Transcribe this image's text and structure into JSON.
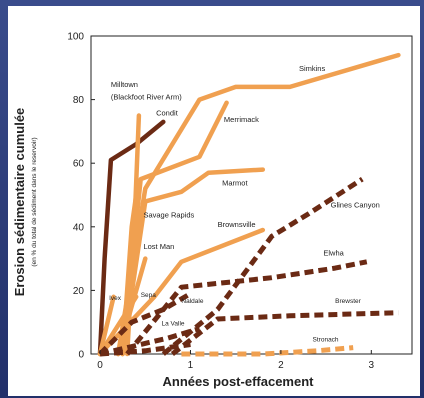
{
  "colors": {
    "background": "#2c3c78",
    "dam_removal_dark": "#6b2a14",
    "dam_removal_light": "#f0a050",
    "staged_dark": "#6b2a14",
    "staged_light": "#f0a050"
  },
  "chart_data": {
    "type": "line",
    "xlabel": "Années post-effacement",
    "ylabel": "Erosion sédimentaire cumulée",
    "ylabel_sub": "(en % du total de sédiment dans le reservoir)",
    "xlim": [
      -0.1,
      3.45
    ],
    "ylim": [
      0,
      100
    ],
    "x_ticks": [
      0,
      1,
      2,
      3
    ],
    "y_ticks": [
      0,
      20,
      40,
      60,
      80,
      100
    ],
    "grid": false,
    "series": [
      {
        "name": "Condit",
        "color": "#6b2a14",
        "dash": false,
        "x": [
          0,
          0.05,
          0.12,
          0.4,
          0.7
        ],
        "y": [
          0,
          30,
          61,
          66,
          73
        ]
      },
      {
        "name": "Milltown (Blackfoot River Arm)",
        "color": "#f0a050",
        "dash": false,
        "x": [
          0.3,
          0.38,
          0.43
        ],
        "y": [
          0,
          40,
          75
        ]
      },
      {
        "name": "Simkins",
        "color": "#f0a050",
        "dash": false,
        "x": [
          0.2,
          0.5,
          1.1,
          1.5,
          2.1,
          3.3
        ],
        "y": [
          0,
          52,
          80,
          84,
          84,
          94
        ]
      },
      {
        "name": "Merrimack",
        "color": "#f0a050",
        "dash": false,
        "x": [
          0.25,
          0.45,
          1.1,
          1.4
        ],
        "y": [
          0,
          55,
          62,
          79
        ]
      },
      {
        "name": "Marmot",
        "color": "#f0a050",
        "dash": false,
        "x": [
          0.25,
          0.5,
          0.9,
          1.2,
          1.8
        ],
        "y": [
          0,
          48,
          51,
          57,
          58
        ]
      },
      {
        "name": "Savage Rapids",
        "color": "#f0a050",
        "dash": false,
        "x": [
          0.25,
          0.35,
          0.4
        ],
        "y": [
          0,
          40,
          50
        ]
      },
      {
        "name": "Brownsville",
        "color": "#f0a050",
        "dash": false,
        "x": [
          0.0,
          0.6,
          0.9,
          1.8
        ],
        "y": [
          0,
          18,
          29,
          39
        ]
      },
      {
        "name": "Lost Man",
        "color": "#f0a050",
        "dash": false,
        "x": [
          0.2,
          0.5
        ],
        "y": [
          0,
          30
        ]
      },
      {
        "name": "Glines Canyon",
        "color": "#6b2a14",
        "dash": true,
        "x": [
          0.7,
          1.3,
          1.9,
          2.3,
          2.9
        ],
        "y": [
          0,
          14,
          37,
          44,
          55
        ]
      },
      {
        "name": "Elwha",
        "color": "#6b2a14",
        "dash": true,
        "x": [
          0.3,
          0.9,
          1.9,
          2.6,
          2.95
        ],
        "y": [
          0,
          21,
          24,
          27,
          29
        ]
      },
      {
        "name": "Brewster",
        "color": "#6b2a14",
        "dash": true,
        "x": [
          0.8,
          1.3,
          2.1,
          3.3
        ],
        "y": [
          0,
          11,
          12,
          13
        ]
      },
      {
        "name": "Stronach",
        "color": "#f0a050",
        "dash": true,
        "x": [
          0.9,
          1.8,
          2.4,
          2.8
        ],
        "y": [
          0,
          0,
          1,
          2
        ]
      },
      {
        "name": "Ivex",
        "color": "#f0a050",
        "dash": false,
        "x": [
          0.0,
          0.15
        ],
        "y": [
          0,
          18
        ]
      },
      {
        "name": "Sepa",
        "color": "#f0a050",
        "dash": false,
        "x": [
          0.0,
          0.4
        ],
        "y": [
          0,
          18
        ]
      },
      {
        "name": "Naldale",
        "color": "#6b2a14",
        "dash": true,
        "x": [
          0.0,
          0.35,
          0.7,
          1.0
        ],
        "y": [
          0,
          10,
          14,
          19
        ]
      },
      {
        "name": "La Valle",
        "color": "#6b2a14",
        "dash": true,
        "x": [
          0.0,
          0.3,
          0.75,
          1.1
        ],
        "y": [
          0,
          2,
          5,
          8
        ]
      },
      {
        "name": "",
        "color": "#6b2a14",
        "dash": true,
        "x": [
          0.0,
          0.5,
          1.0
        ],
        "y": [
          0,
          1,
          3
        ]
      }
    ],
    "annotations": [
      {
        "text": "Milltown",
        "x": 0.12,
        "y": 84
      },
      {
        "text": "(Blackfoot River Arm)",
        "x": 0.12,
        "y": 80
      },
      {
        "text": "Condit",
        "x": 0.62,
        "y": 75
      },
      {
        "text": "Simkins",
        "x": 2.2,
        "y": 89
      },
      {
        "text": "Merrimack",
        "x": 1.37,
        "y": 73
      },
      {
        "text": "Marmot",
        "x": 1.35,
        "y": 53
      },
      {
        "text": "Savage Rapids",
        "x": 0.48,
        "y": 43
      },
      {
        "text": "Brownsville",
        "x": 1.3,
        "y": 40
      },
      {
        "text": "Lost Man",
        "x": 0.48,
        "y": 33
      },
      {
        "text": "Glines Canyon",
        "x": 2.55,
        "y": 46
      },
      {
        "text": "Elwha",
        "x": 2.47,
        "y": 31
      },
      {
        "text": "Brewster",
        "x": 2.6,
        "y": 16
      },
      {
        "text": "Stronach",
        "x": 2.35,
        "y": 4
      },
      {
        "text": "Ivex",
        "x": 0.1,
        "y": 17
      },
      {
        "text": "Sepa",
        "x": 0.45,
        "y": 18
      },
      {
        "text": "Naldale",
        "x": 0.9,
        "y": 16
      },
      {
        "text": "La Valle",
        "x": 0.68,
        "y": 9
      }
    ]
  }
}
